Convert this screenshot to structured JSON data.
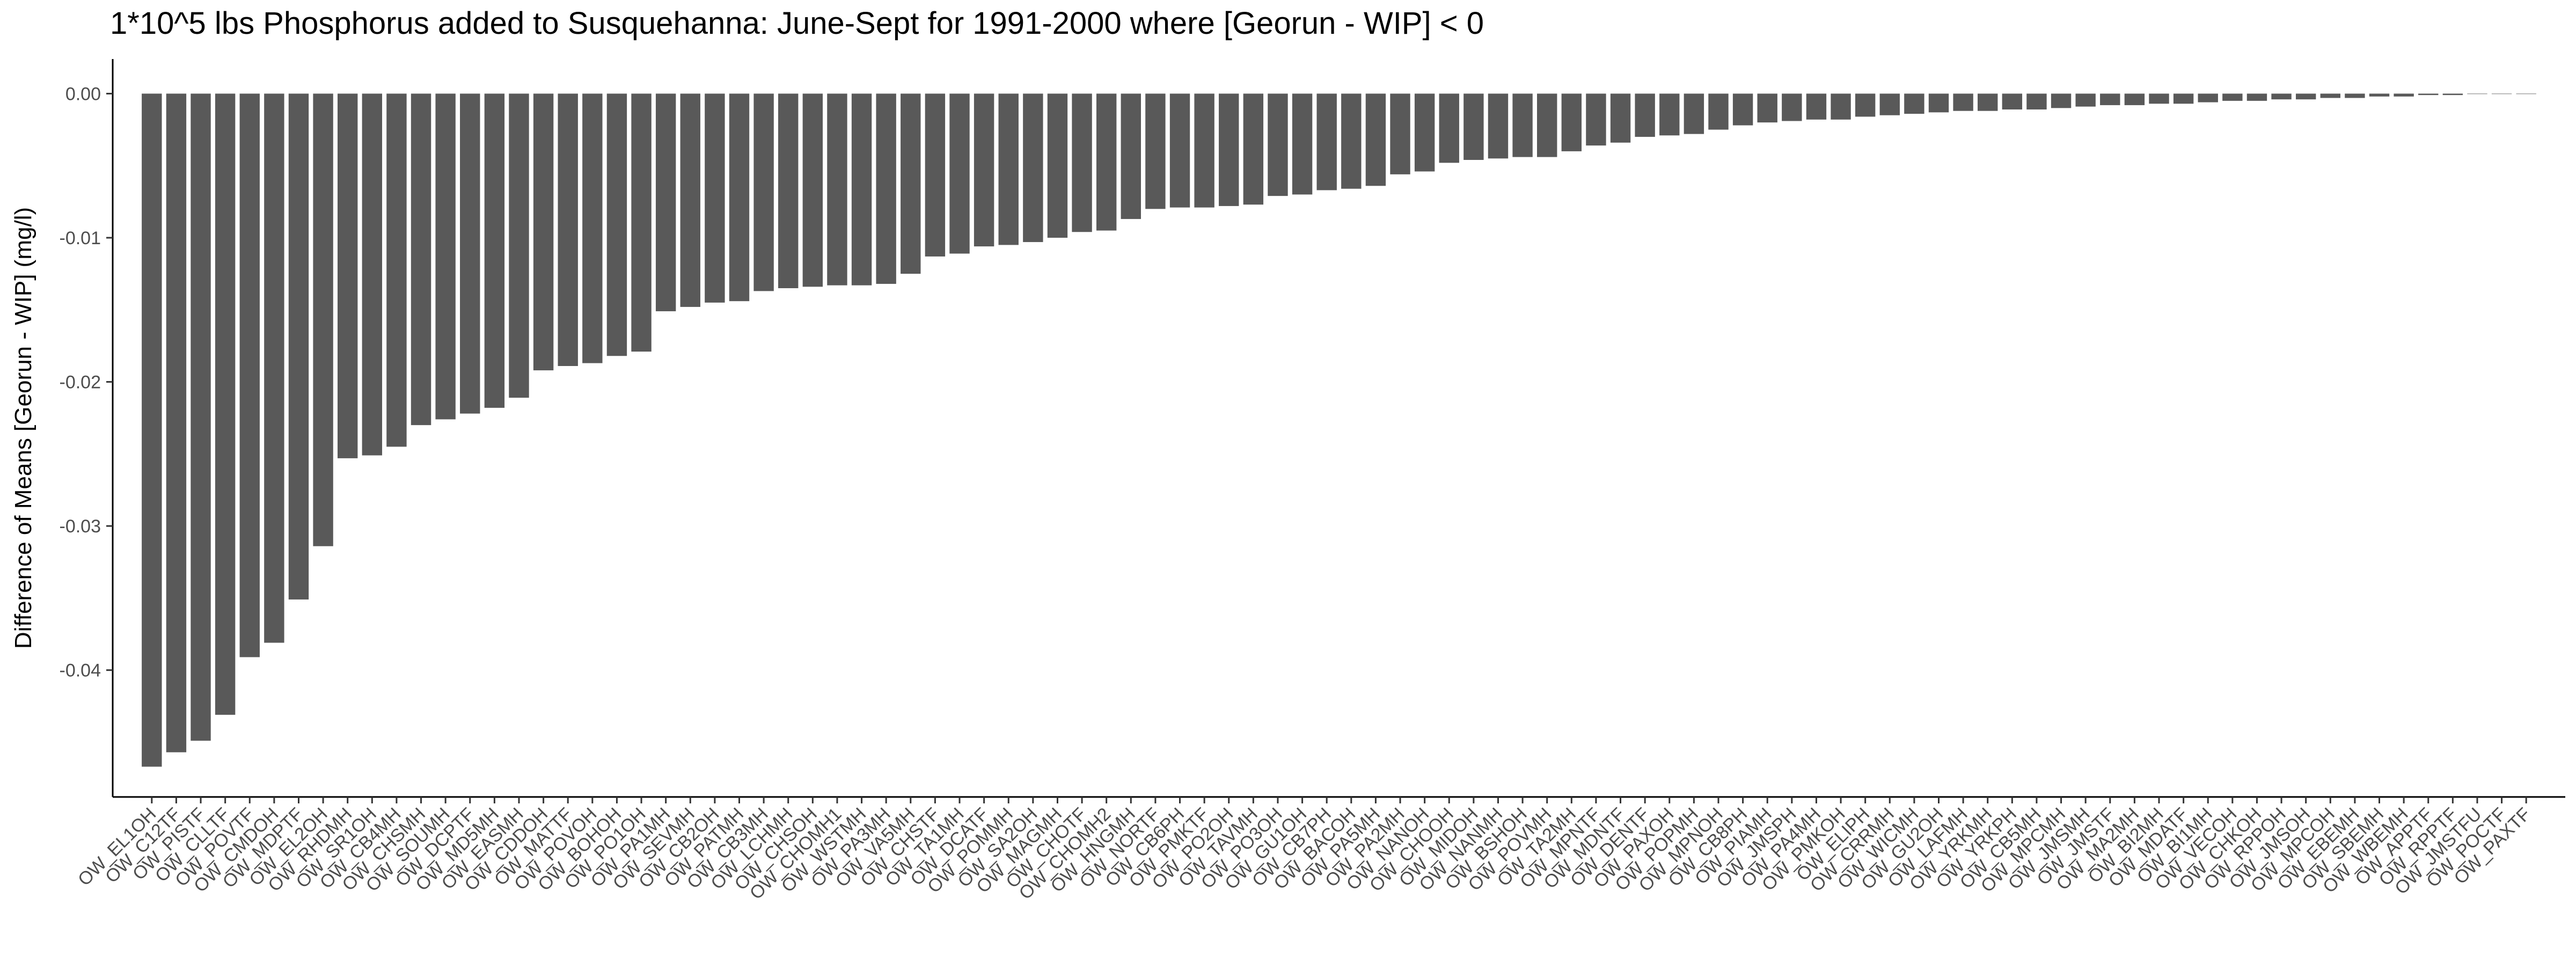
{
  "chart_data": {
    "type": "bar",
    "title": "1*10^5 lbs Phosphorus added to Susquehanna: June-Sept for 1991-2000 where [Georun - WIP] < 0",
    "xlabel": "",
    "ylabel": "Difference of Means [Georun - WIP] (mg/l)",
    "ylim": [
      -0.0488,
      0.0024
    ],
    "yticks": [
      0.0,
      -0.01,
      -0.02,
      -0.03,
      -0.04
    ],
    "ytick_labels": [
      "0.00",
      "-0.01",
      "-0.02",
      "-0.03",
      "-0.04"
    ],
    "grid": false,
    "bar_color": "#595959",
    "categories": [
      "OW_EL1OH",
      "OW_C12TF",
      "OW_PISTF",
      "OW_CLLTF",
      "OW_POVTF",
      "OW_CMDOH",
      "OW_MDPTF",
      "OW_EL2OH",
      "OW_RHDMH",
      "OW_SR1OH",
      "OW_CB4MH",
      "OW_CHSMH",
      "OW_SOUMH",
      "OW_DCPTF",
      "OW_MD5MH",
      "OW_EASMH",
      "OW_CDDOH",
      "OW_MATTF",
      "OW_POVOH",
      "OW_BOHOH",
      "OW_PO1OH",
      "OW_PA1MH",
      "OW_SEVMH",
      "OW_CB2OH",
      "OW_PATMH",
      "OW_CB3MH",
      "OW_LCHMH",
      "OW_CHSOH",
      "OW_CHOMH1",
      "OW_WSTMH",
      "OW_PA3MH",
      "OW_VA5MH",
      "OW_CHSTF",
      "OW_TA1MH",
      "OW_DCATF",
      "OW_POMMH",
      "OW_SA2OH",
      "OW_MAGMH",
      "OW_CHOTF",
      "OW_CHOMH2",
      "OW_HNGMH",
      "OW_NORTF",
      "OW_CB6PH",
      "OW_PMKTF",
      "OW_PO2OH",
      "OW_TAVMH",
      "OW_PO3OH",
      "OW_GU1OH",
      "OW_CB7PH",
      "OW_BACOH",
      "OW_PA5MH",
      "OW_PA2MH",
      "OW_NANOH",
      "OW_CHOOH",
      "OW_MIDOH",
      "OW_NANMH",
      "OW_BSHOH",
      "OW_POVMH",
      "OW_TA2MH",
      "OW_MPNTF",
      "OW_MDNTF",
      "OW_DENTF",
      "OW_PAXOH",
      "OW_POPMH",
      "OW_MPNOH",
      "OW_CB8PH",
      "OW_PIAMH",
      "OW_JMSPH",
      "OW_PA4MH",
      "OW_PMKOH",
      "OW_ELIPH",
      "OW_CRRMH",
      "OW_WICMH",
      "OW_GU2OH",
      "OW_LAFMH",
      "OW_YRKMH",
      "OW_YRKPH",
      "OW_CB5MH",
      "OW_MPCMH",
      "OW_JMSMH",
      "OW_JMSTF",
      "OW_MA2MH",
      "OW_BI2MH",
      "OW_MDATF",
      "OW_BI1MH",
      "OW_VECOH",
      "OW_CHKOH",
      "OW_RPPOH",
      "OW_JMSOH",
      "OW_MPCOH",
      "OW_EBEMH",
      "OW_SBEMH",
      "OW_WBEMH",
      "OW_APPTF",
      "OW_RPPTF",
      "OW_JMSTFU",
      "OW_POCTF",
      "OW_PAXTF"
    ],
    "values": [
      -0.0467,
      -0.0457,
      -0.0449,
      -0.0431,
      -0.0391,
      -0.0381,
      -0.0351,
      -0.0314,
      -0.0253,
      -0.0251,
      -0.0245,
      -0.023,
      -0.0226,
      -0.0222,
      -0.0218,
      -0.0211,
      -0.0192,
      -0.0189,
      -0.0187,
      -0.0182,
      -0.0179,
      -0.0151,
      -0.0148,
      -0.0145,
      -0.0144,
      -0.0137,
      -0.0135,
      -0.0134,
      -0.0133,
      -0.0133,
      -0.0132,
      -0.0125,
      -0.0113,
      -0.0111,
      -0.0106,
      -0.0105,
      -0.0103,
      -0.01,
      -0.0096,
      -0.0095,
      -0.0087,
      -0.008,
      -0.0079,
      -0.0079,
      -0.0078,
      -0.0077,
      -0.0071,
      -0.007,
      -0.0067,
      -0.0066,
      -0.0064,
      -0.0056,
      -0.0054,
      -0.0048,
      -0.0046,
      -0.0045,
      -0.0044,
      -0.0044,
      -0.004,
      -0.0036,
      -0.0034,
      -0.003,
      -0.0029,
      -0.0028,
      -0.0025,
      -0.0022,
      -0.002,
      -0.0019,
      -0.0018,
      -0.0018,
      -0.0016,
      -0.0015,
      -0.0014,
      -0.0013,
      -0.0012,
      -0.0012,
      -0.0011,
      -0.0011,
      -0.001,
      -0.0009,
      -0.0008,
      -0.0008,
      -0.0007,
      -0.0007,
      -0.0006,
      -0.0005,
      -0.0005,
      -0.0004,
      -0.0004,
      -0.0003,
      -0.0003,
      -0.0002,
      -0.0002,
      -0.0001,
      -0.0001,
      0,
      0,
      0
    ]
  }
}
